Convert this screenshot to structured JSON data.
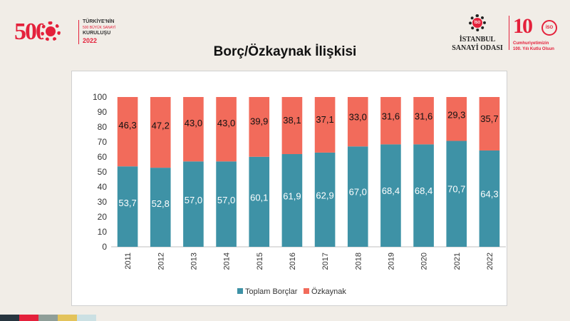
{
  "logo_left": {
    "number": "500",
    "line1": "TÜRKİYE'NİN",
    "line2": "500 BÜYÜK SANAYİ",
    "line3": "KURULUŞU",
    "year": "2022"
  },
  "logo_right": {
    "iso_mark": "İSO",
    "name1": "İSTANBUL",
    "name2": "SANAYİ ODASI",
    "big": "10",
    "mini": "İSO",
    "slogan1": "Cumhuriyetimizin",
    "slogan2": "100. Yılı Kutlu Olsun"
  },
  "colors": {
    "toplam": "#3e92a6",
    "ozkaynak": "#f26b5b",
    "background": "#f1ede7"
  },
  "chart_data": {
    "type": "bar",
    "stacked": true,
    "title": "Borç/Özkaynak İlişkisi",
    "categories": [
      "2011",
      "2012",
      "2013",
      "2014",
      "2015",
      "2016",
      "2017",
      "2018",
      "2019",
      "2020",
      "2021",
      "2022"
    ],
    "series": [
      {
        "name": "Toplam Borçlar",
        "values": [
          53.7,
          52.8,
          57.0,
          57.0,
          60.1,
          61.9,
          62.9,
          67.0,
          68.4,
          68.4,
          70.7,
          64.3
        ],
        "labels": [
          "53,7",
          "52,8",
          "57,0",
          "57,0",
          "60,1",
          "61,9",
          "62,9",
          "67,0",
          "68,4",
          "68,4",
          "70,7",
          "64,3"
        ]
      },
      {
        "name": "Özkaynak",
        "values": [
          46.3,
          47.2,
          43.0,
          43.0,
          39.9,
          38.1,
          37.1,
          33.0,
          31.6,
          31.6,
          29.3,
          35.7
        ],
        "labels": [
          "46,3",
          "47,2",
          "43,0",
          "43,0",
          "39,9",
          "38,1",
          "37,1",
          "33,0",
          "31,6",
          "31,6",
          "29,3",
          "35,7"
        ]
      }
    ],
    "ylim": [
      0,
      100
    ],
    "yticks": [
      0,
      10,
      20,
      30,
      40,
      50,
      60,
      70,
      80,
      90,
      100
    ],
    "legend": "bottom",
    "grid": false
  },
  "strip_colors": [
    "#27353f",
    "#e4213b",
    "#8f9e98",
    "#e3c35b",
    "#cbe0e3"
  ]
}
